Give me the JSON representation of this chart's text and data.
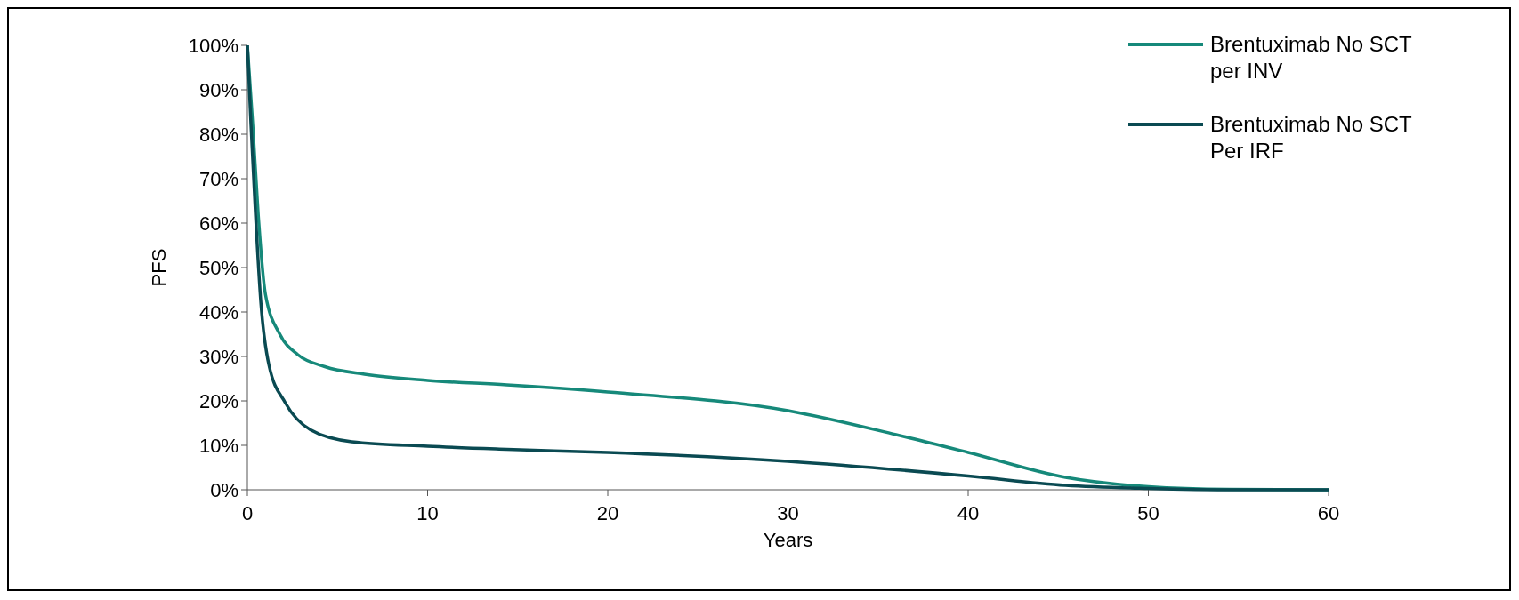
{
  "chart_data": {
    "type": "line",
    "xlabel": "Years",
    "ylabel": "PFS",
    "xlim": [
      0,
      60
    ],
    "xticks": [
      0,
      10,
      20,
      30,
      40,
      50,
      60
    ],
    "ylim": [
      0,
      100
    ],
    "yticks": [
      {
        "value": 0,
        "label": "0%"
      },
      {
        "value": 10,
        "label": "10%"
      },
      {
        "value": 20,
        "label": "20%"
      },
      {
        "value": 30,
        "label": "30%"
      },
      {
        "value": 40,
        "label": "40%"
      },
      {
        "value": 50,
        "label": "50%"
      },
      {
        "value": 60,
        "label": "60%"
      },
      {
        "value": 70,
        "label": "70%"
      },
      {
        "value": 80,
        "label": "80%"
      },
      {
        "value": 90,
        "label": "90%"
      },
      {
        "value": 100,
        "label": "100%"
      }
    ],
    "grid": false,
    "legend": "top right",
    "marker": "none",
    "line_style": "solid",
    "series": [
      {
        "name": "Brentuximab No SCT per INV",
        "color": "#16897a",
        "x": [
          0,
          0.3,
          0.6,
          1.0,
          1.8,
          2.8,
          4.3,
          6.5,
          10,
          14.4,
          20,
          30,
          36,
          40,
          45.4,
          50,
          54.5,
          60
        ],
        "values": [
          100,
          82,
          62,
          44,
          35,
          30.4,
          27.7,
          26,
          24.6,
          23.6,
          22,
          17.8,
          12.4,
          8.4,
          2.8,
          0.7,
          0.1,
          0
        ]
      },
      {
        "name": "Brentuximab No SCT Per IRF",
        "color": "#0a4a52",
        "x": [
          0,
          0.2,
          0.45,
          0.75,
          1.2,
          2.1,
          3.5,
          5.8,
          10,
          14.4,
          20,
          30,
          40,
          45.4,
          50,
          55,
          60
        ],
        "values": [
          100,
          82,
          62,
          42,
          28,
          19.6,
          13.5,
          10.8,
          9.8,
          9.1,
          8.4,
          6.4,
          3.1,
          1,
          0.3,
          0,
          0
        ]
      }
    ]
  }
}
